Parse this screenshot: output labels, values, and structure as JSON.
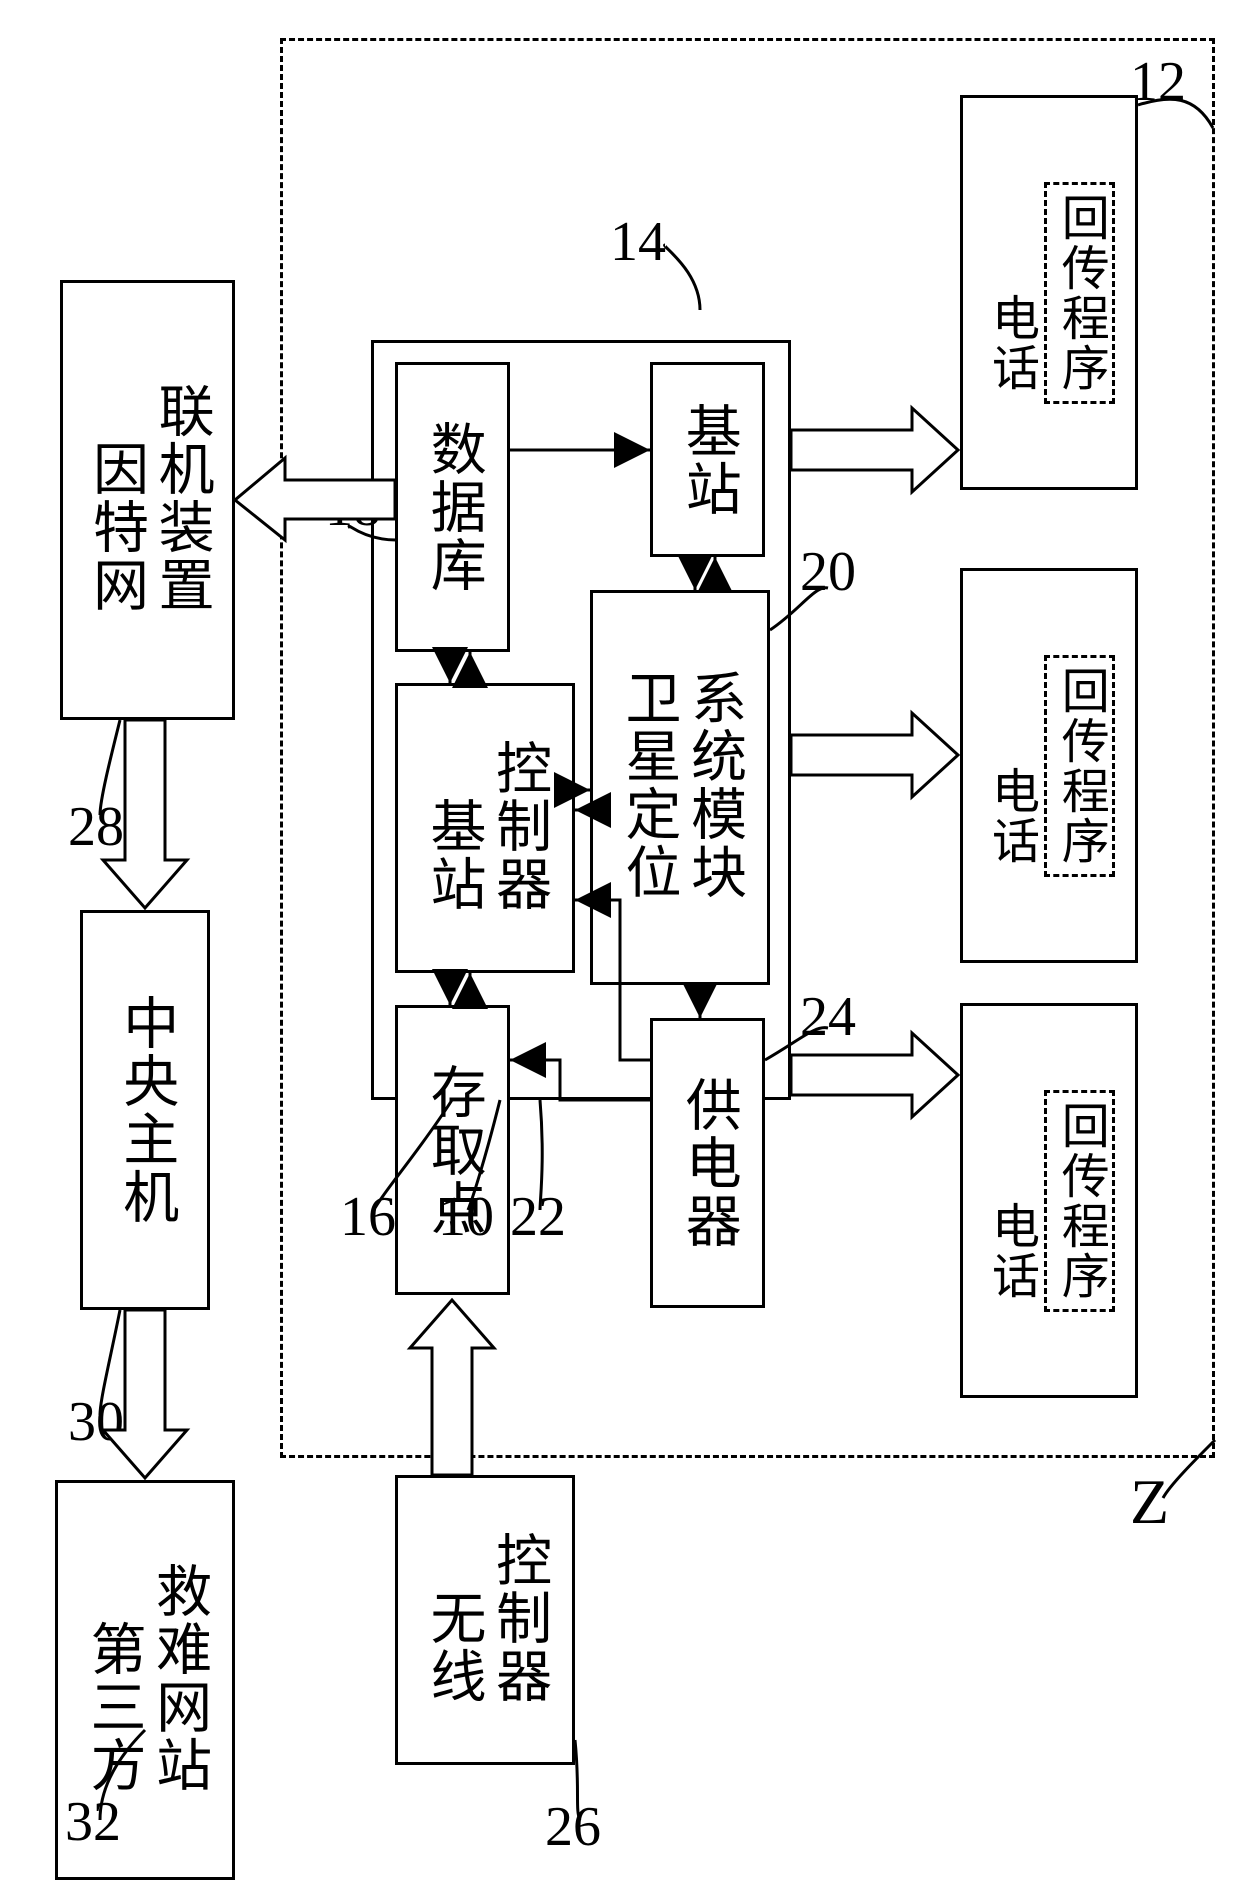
{
  "zone_label": "Z",
  "boxes": {
    "internet": {
      "l1": "因特网",
      "l2": "联机装置"
    },
    "central": "中央主机",
    "third": {
      "l1": "第三方",
      "l2": "救难网站"
    },
    "db": "数据库",
    "bsc": {
      "l1": "基站",
      "l2": "控制器"
    },
    "ap": "存取点",
    "bts": "基站",
    "gps": {
      "l1": "卫星定位",
      "l2": "系统模块"
    },
    "pwr": "供电器",
    "wlc": {
      "l1": "无线",
      "l2": "控制器"
    },
    "phone_outer": "电话",
    "phone_inner": "回传程序"
  },
  "refs": {
    "r12": "12",
    "r14": "14",
    "r18": "18",
    "r20": "20",
    "r24": "24",
    "r16": "16",
    "r10": "10",
    "r22": "22",
    "r26": "26",
    "r28": "28",
    "r30": "30",
    "r32": "32"
  },
  "style": {
    "border_color": "#000000",
    "background": "#ffffff",
    "font_size_main": 56,
    "font_size_sub": 48,
    "stroke_width": 3
  }
}
